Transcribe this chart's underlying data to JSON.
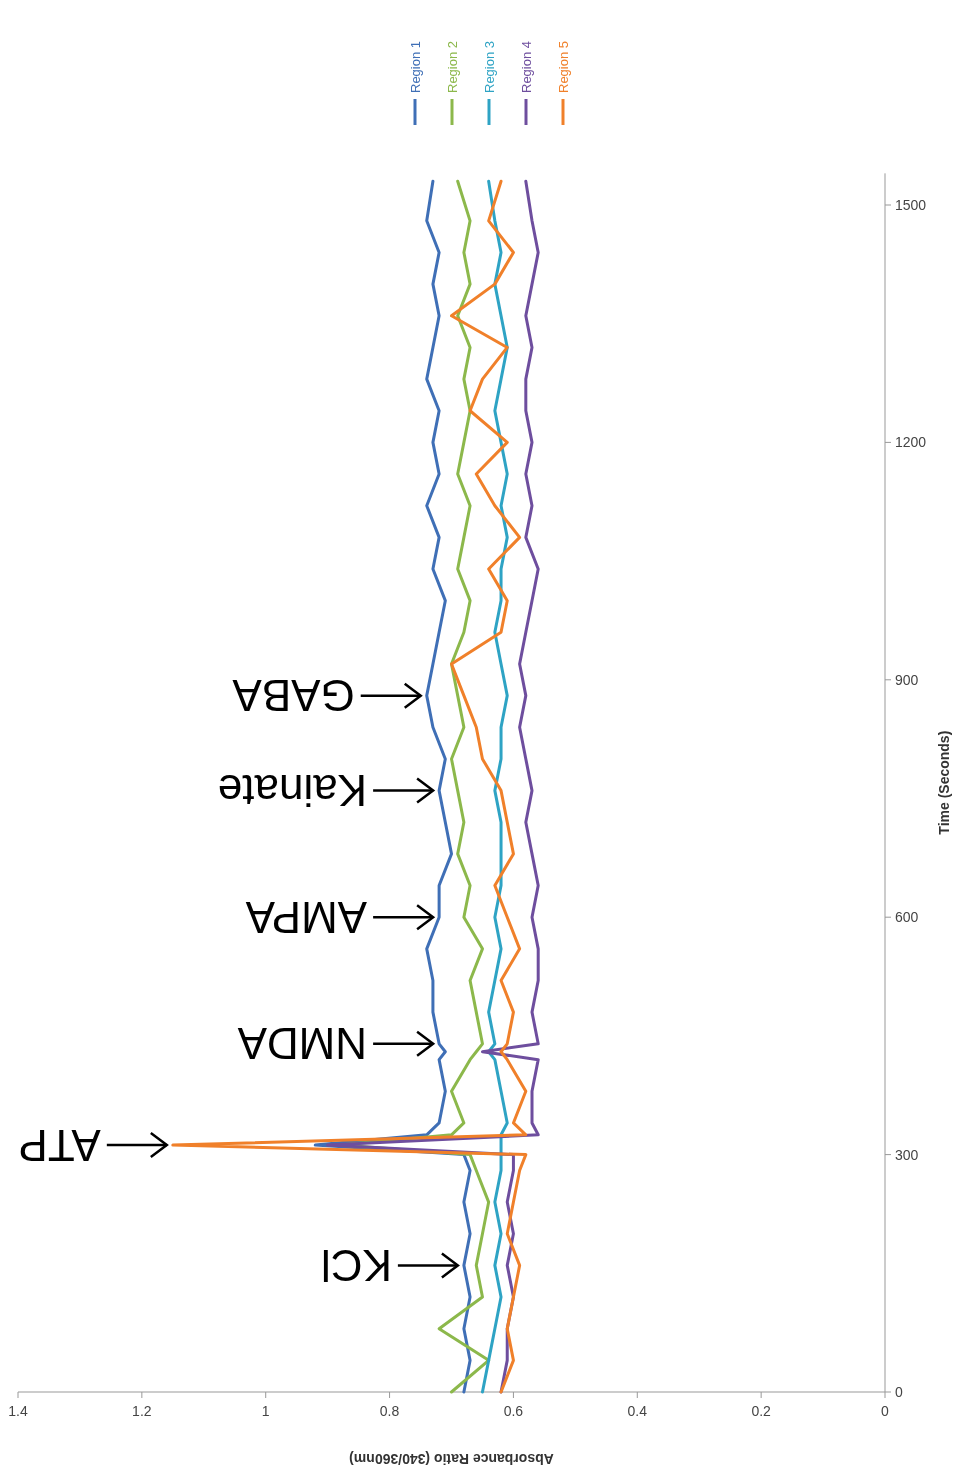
{
  "chart_data": {
    "type": "line",
    "xlabel": "Absorbance Ratio (340/360nm)",
    "ylabel": "Time (Seconds)",
    "series": [
      {
        "name": "Region 1",
        "color": "#3f6fb6",
        "x": [
          0.68,
          0.67,
          0.68,
          0.67,
          0.68,
          0.67,
          0.68,
          0.67,
          0.68,
          0.92,
          0.74,
          0.72,
          0.71,
          0.72,
          0.71,
          0.72,
          0.73,
          0.73,
          0.74,
          0.72,
          0.72,
          0.7,
          0.71,
          0.72,
          0.71,
          0.73,
          0.74,
          0.73,
          0.72,
          0.71,
          0.73,
          0.72,
          0.74,
          0.72,
          0.73,
          0.72,
          0.74,
          0.73,
          0.72,
          0.73,
          0.72,
          0.74,
          0.73
        ],
        "values": [
          0,
          40,
          80,
          120,
          160,
          200,
          240,
          280,
          300,
          312,
          325,
          340,
          380,
          420,
          430,
          440,
          480,
          520,
          560,
          600,
          640,
          680,
          720,
          760,
          800,
          840,
          880,
          920,
          960,
          1000,
          1040,
          1080,
          1120,
          1160,
          1200,
          1240,
          1280,
          1320,
          1360,
          1400,
          1440,
          1480,
          1530
        ]
      },
      {
        "name": "Region 2",
        "color": "#8cb84b",
        "x": [
          0.7,
          0.64,
          0.72,
          0.65,
          0.66,
          0.65,
          0.64,
          0.66,
          0.67,
          0.88,
          0.7,
          0.68,
          0.7,
          0.67,
          0.66,
          0.65,
          0.66,
          0.67,
          0.65,
          0.68,
          0.67,
          0.69,
          0.68,
          0.69,
          0.7,
          0.68,
          0.69,
          0.7,
          0.68,
          0.67,
          0.69,
          0.68,
          0.67,
          0.69,
          0.68,
          0.67,
          0.68,
          0.67,
          0.69,
          0.67,
          0.68,
          0.67,
          0.69
        ],
        "values": [
          0,
          40,
          80,
          120,
          160,
          200,
          240,
          280,
          300,
          312,
          325,
          340,
          380,
          420,
          430,
          440,
          480,
          520,
          560,
          600,
          640,
          680,
          720,
          760,
          800,
          840,
          880,
          920,
          960,
          1000,
          1040,
          1080,
          1120,
          1160,
          1200,
          1240,
          1280,
          1320,
          1360,
          1400,
          1440,
          1480,
          1530
        ]
      },
      {
        "name": "Region 3",
        "color": "#2ea3c4",
        "x": [
          0.65,
          0.64,
          0.63,
          0.62,
          0.63,
          0.62,
          0.63,
          0.62,
          0.62,
          0.62,
          0.62,
          0.61,
          0.62,
          0.63,
          0.64,
          0.63,
          0.64,
          0.63,
          0.62,
          0.63,
          0.62,
          0.62,
          0.62,
          0.63,
          0.62,
          0.62,
          0.61,
          0.62,
          0.63,
          0.62,
          0.62,
          0.61,
          0.62,
          0.61,
          0.62,
          0.63,
          0.62,
          0.61,
          0.62,
          0.63,
          0.62,
          0.63,
          0.64
        ],
        "values": [
          0,
          40,
          80,
          120,
          160,
          200,
          240,
          280,
          300,
          312,
          325,
          340,
          380,
          420,
          430,
          440,
          480,
          520,
          560,
          600,
          640,
          680,
          720,
          760,
          800,
          840,
          880,
          920,
          960,
          1000,
          1040,
          1080,
          1120,
          1160,
          1200,
          1240,
          1280,
          1320,
          1360,
          1400,
          1440,
          1480,
          1530
        ]
      },
      {
        "name": "Region 4",
        "color": "#6e4e9e",
        "x": [
          0.62,
          0.61,
          0.61,
          0.6,
          0.61,
          0.6,
          0.61,
          0.6,
          0.6,
          0.9,
          0.56,
          0.57,
          0.57,
          0.56,
          0.65,
          0.56,
          0.57,
          0.56,
          0.56,
          0.57,
          0.56,
          0.57,
          0.58,
          0.57,
          0.58,
          0.59,
          0.58,
          0.59,
          0.58,
          0.57,
          0.56,
          0.58,
          0.57,
          0.58,
          0.57,
          0.58,
          0.58,
          0.57,
          0.58,
          0.57,
          0.56,
          0.57,
          0.58
        ],
        "values": [
          0,
          40,
          80,
          120,
          160,
          200,
          240,
          280,
          300,
          312,
          325,
          340,
          380,
          420,
          430,
          440,
          480,
          520,
          560,
          600,
          640,
          680,
          720,
          760,
          800,
          840,
          880,
          920,
          960,
          1000,
          1040,
          1080,
          1120,
          1160,
          1200,
          1240,
          1280,
          1320,
          1360,
          1400,
          1440,
          1480,
          1530
        ]
      },
      {
        "name": "Region 5",
        "color": "#f0802a",
        "x": [
          0.62,
          0.6,
          0.61,
          0.6,
          0.59,
          0.61,
          0.6,
          0.59,
          0.58,
          1.15,
          0.58,
          0.6,
          0.58,
          0.61,
          0.62,
          0.61,
          0.6,
          0.62,
          0.59,
          0.61,
          0.63,
          0.6,
          0.61,
          0.62,
          0.65,
          0.66,
          0.68,
          0.7,
          0.62,
          0.61,
          0.64,
          0.59,
          0.63,
          0.66,
          0.61,
          0.67,
          0.65,
          0.61,
          0.7,
          0.63,
          0.6,
          0.64,
          0.62
        ],
        "values": [
          0,
          40,
          80,
          120,
          160,
          200,
          240,
          280,
          300,
          312,
          325,
          340,
          380,
          420,
          430,
          440,
          480,
          520,
          560,
          600,
          640,
          680,
          720,
          760,
          800,
          840,
          880,
          920,
          960,
          1000,
          1040,
          1080,
          1120,
          1160,
          1200,
          1240,
          1280,
          1320,
          1360,
          1400,
          1440,
          1480,
          1530
        ]
      }
    ],
    "xlim": [
      1.4,
      0
    ],
    "xticks": [
      1.4,
      1.2,
      1,
      0.8,
      0.6,
      0.4,
      0.2,
      0
    ],
    "ylim": [
      0,
      1540
    ],
    "yticks": [
      0,
      300,
      600,
      900,
      1200,
      1500
    ],
    "legend": "top right",
    "annotations": [
      {
        "text": "KCl",
        "x": 0.68,
        "y": 160
      },
      {
        "text": "ATP",
        "x": 1.15,
        "y": 312
      },
      {
        "text": "NMDA",
        "x": 0.72,
        "y": 440
      },
      {
        "text": "AMPA",
        "x": 0.72,
        "y": 600
      },
      {
        "text": "Kainate",
        "x": 0.72,
        "y": 760
      },
      {
        "text": "GABA",
        "x": 0.74,
        "y": 880
      }
    ]
  }
}
